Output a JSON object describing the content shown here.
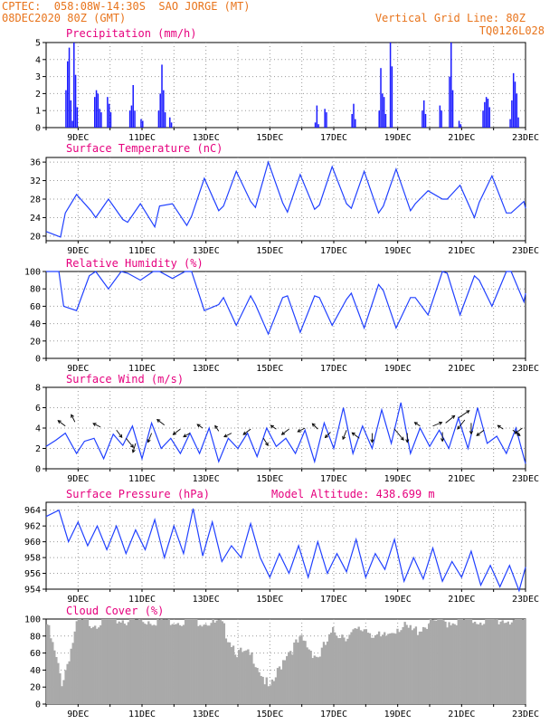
{
  "header": {
    "line1_left": "CPTEC:  058:08W-14:30S  SAO JORGE (MT)",
    "line2_left": "08DEC2020 80Z (GMT)",
    "line1_right": "Vertical Grid Line: 80Z",
    "line2_right": "TQ0126L028"
  },
  "chart_data": [
    {
      "type": "bar",
      "title": "Precipitation (mm/h)",
      "x_ticks": [
        "9DEC",
        "11DEC",
        "13DEC",
        "15DEC",
        "17DEC",
        "19DEC",
        "21DEC",
        "23DEC"
      ],
      "ylim": [
        0,
        5
      ],
      "y_ticks": [
        "0",
        "1",
        "2",
        "3",
        "4",
        "5"
      ],
      "color": "#1a1aff",
      "grid": true,
      "events": [
        {
          "day": 8.6,
          "values": [
            2.2,
            3.9,
            4.7,
            1.6,
            0.4
          ]
        },
        {
          "day": 8.85,
          "values": [
            5.0,
            3.1,
            1.2
          ]
        },
        {
          "day": 9.5,
          "values": [
            1.8,
            2.2,
            2.0,
            1.1,
            0.9
          ]
        },
        {
          "day": 9.9,
          "values": [
            1.8,
            1.4,
            0.9
          ]
        },
        {
          "day": 10.6,
          "values": [
            1.0,
            1.3,
            2.5,
            1.0
          ]
        },
        {
          "day": 10.95,
          "values": [
            0.5,
            0.4
          ]
        },
        {
          "day": 11.5,
          "values": [
            1.0,
            2.0,
            3.7,
            2.2,
            0.9
          ]
        },
        {
          "day": 11.85,
          "values": [
            0.6,
            0.3
          ]
        },
        {
          "day": 16.4,
          "values": [
            0.3,
            1.3,
            0.2
          ]
        },
        {
          "day": 16.7,
          "values": [
            1.1,
            0.9
          ]
        },
        {
          "day": 17.55,
          "values": [
            0.8,
            1.4,
            0.5
          ]
        },
        {
          "day": 18.4,
          "values": [
            1.0,
            3.5,
            2.0,
            1.8,
            0.8
          ]
        },
        {
          "day": 18.75,
          "values": [
            5.0,
            3.6
          ]
        },
        {
          "day": 19.75,
          "values": [
            1.0,
            1.6,
            0.8
          ]
        },
        {
          "day": 20.3,
          "values": [
            1.3,
            1.0
          ]
        },
        {
          "day": 20.6,
          "values": [
            3.0,
            5.0,
            2.2
          ]
        },
        {
          "day": 20.9,
          "values": [
            0.4,
            0.2
          ]
        },
        {
          "day": 21.65,
          "values": [
            1.0,
            1.5,
            1.8,
            1.7,
            1.2
          ]
        },
        {
          "day": 22.5,
          "values": [
            0.5,
            1.6,
            3.2,
            2.7,
            2.0,
            0.6
          ]
        }
      ]
    },
    {
      "type": "line",
      "title": "Surface Temperature (nC)",
      "x_ticks": [
        "9DEC",
        "11DEC",
        "13DEC",
        "15DEC",
        "17DEC",
        "19DEC",
        "21DEC",
        "23DEC"
      ],
      "ylim": [
        19,
        37
      ],
      "y_ticks": [
        "20",
        "24",
        "28",
        "32",
        "36"
      ],
      "y_tick_values": [
        20,
        24,
        28,
        32,
        36
      ],
      "color": "#2040ff",
      "x": [
        8.0,
        8.45,
        8.6,
        8.95,
        9.4,
        9.55,
        9.95,
        10.4,
        10.55,
        10.95,
        11.4,
        11.55,
        11.95,
        12.4,
        12.55,
        12.95,
        13.4,
        13.55,
        13.95,
        14.4,
        14.55,
        14.95,
        15.4,
        15.55,
        15.95,
        16.4,
        16.55,
        16.95,
        17.4,
        17.55,
        17.95,
        18.4,
        18.55,
        18.95,
        19.4,
        19.55,
        19.95,
        20.4,
        20.55,
        20.95,
        21.4,
        21.55,
        21.95,
        22.4,
        22.55,
        22.95,
        23.0
      ],
      "y": [
        21.0,
        19.8,
        25.0,
        29.0,
        25.5,
        24.0,
        28.0,
        23.6,
        23.0,
        27.0,
        22.0,
        26.5,
        27.0,
        22.3,
        24.3,
        32.5,
        25.5,
        26.5,
        34.0,
        27.5,
        26.2,
        36.0,
        27.2,
        25.2,
        33.3,
        25.8,
        26.7,
        35.0,
        27.0,
        26.0,
        34.0,
        25.0,
        26.5,
        34.5,
        25.5,
        27.0,
        29.8,
        28.0,
        28.0,
        31.0,
        24.0,
        27.3,
        33.0,
        25.0,
        25.0,
        27.5,
        26.0
      ]
    },
    {
      "type": "line",
      "title": "Relative Humidity (%)",
      "x_ticks": [
        "9DEC",
        "11DEC",
        "13DEC",
        "15DEC",
        "17DEC",
        "19DEC",
        "21DEC",
        "23DEC"
      ],
      "ylim": [
        0,
        100
      ],
      "y_ticks": [
        "0",
        "20",
        "40",
        "60",
        "80",
        "100"
      ],
      "y_tick_values": [
        0,
        20,
        40,
        60,
        80,
        100
      ],
      "color": "#2040ff",
      "x": [
        8.0,
        8.4,
        8.55,
        8.95,
        9.35,
        9.55,
        9.95,
        10.35,
        10.55,
        10.95,
        11.35,
        11.55,
        11.95,
        12.35,
        12.55,
        12.95,
        13.4,
        13.55,
        13.95,
        14.4,
        14.55,
        14.95,
        15.4,
        15.55,
        15.95,
        16.4,
        16.55,
        16.95,
        17.4,
        17.55,
        17.95,
        18.4,
        18.55,
        18.95,
        19.4,
        19.55,
        19.95,
        20.4,
        20.55,
        20.95,
        21.4,
        21.55,
        21.95,
        22.4,
        22.55,
        22.95,
        23.0
      ],
      "y": [
        100,
        100,
        60,
        55,
        95,
        100,
        80,
        100,
        98,
        90,
        100,
        100,
        92,
        100,
        100,
        55,
        62,
        70,
        38,
        72,
        62,
        28,
        70,
        72,
        30,
        72,
        70,
        38,
        68,
        75,
        35,
        85,
        78,
        35,
        70,
        70,
        50,
        100,
        98,
        50,
        95,
        90,
        60,
        100,
        100,
        65,
        75
      ]
    },
    {
      "type": "line",
      "title": "Surface Wind (m/s)",
      "x_ticks": [
        "9DEC",
        "11DEC",
        "13DEC",
        "15DEC",
        "17DEC",
        "19DEC",
        "21DEC",
        "23DEC"
      ],
      "ylim": [
        0,
        8
      ],
      "y_ticks": [
        "0",
        "2",
        "4",
        "6",
        "8"
      ],
      "y_tick_values": [
        0,
        2,
        4,
        6,
        8
      ],
      "color": "#2040ff",
      "x": [
        8.0,
        8.3,
        8.6,
        8.95,
        9.2,
        9.5,
        9.8,
        10.1,
        10.4,
        10.7,
        11.0,
        11.3,
        11.6,
        11.9,
        12.2,
        12.5,
        12.8,
        13.1,
        13.4,
        13.7,
        14.0,
        14.3,
        14.6,
        14.9,
        15.2,
        15.5,
        15.8,
        16.1,
        16.4,
        16.7,
        17.0,
        17.3,
        17.6,
        17.9,
        18.2,
        18.5,
        18.8,
        19.1,
        19.4,
        19.7,
        20.0,
        20.3,
        20.6,
        20.9,
        21.2,
        21.5,
        21.8,
        22.1,
        22.4,
        22.7,
        23.0
      ],
      "y": [
        2.2,
        2.8,
        3.5,
        1.5,
        2.7,
        3.0,
        1.0,
        3.4,
        2.3,
        4.2,
        1.0,
        4.5,
        2.0,
        3.0,
        1.5,
        3.5,
        1.5,
        4.0,
        0.7,
        3.0,
        2.0,
        3.5,
        1.2,
        4.0,
        2.2,
        3.0,
        1.5,
        3.8,
        0.7,
        4.5,
        2.0,
        6.0,
        1.5,
        4.2,
        2.0,
        5.8,
        2.5,
        6.5,
        1.5,
        4.0,
        2.2,
        3.8,
        2.0,
        5.0,
        2.0,
        6.0,
        2.5,
        3.2,
        1.5,
        4.0,
        0.5
      ],
      "annotations": "wind direction arrows"
    },
    {
      "type": "line",
      "title": "Surface Pressure (hPa)",
      "subtitle": "Model Altitude: 438.699 m",
      "x_ticks": [
        "9DEC",
        "11DEC",
        "13DEC",
        "15DEC",
        "17DEC",
        "19DEC",
        "21DEC",
        "23DEC"
      ],
      "ylim": [
        954,
        965
      ],
      "y_ticks": [
        "954",
        "956",
        "958",
        "960",
        "962",
        "964"
      ],
      "y_tick_values": [
        954,
        956,
        958,
        960,
        962,
        964
      ],
      "color": "#2040ff",
      "x": [
        8.0,
        8.4,
        8.7,
        9.0,
        9.3,
        9.6,
        9.9,
        10.2,
        10.5,
        10.8,
        11.1,
        11.4,
        11.7,
        12.0,
        12.3,
        12.6,
        12.9,
        13.2,
        13.5,
        13.8,
        14.1,
        14.4,
        14.7,
        15.0,
        15.3,
        15.6,
        15.9,
        16.2,
        16.5,
        16.8,
        17.1,
        17.4,
        17.7,
        18.0,
        18.3,
        18.6,
        18.9,
        19.2,
        19.5,
        19.8,
        20.1,
        20.4,
        20.7,
        21.0,
        21.3,
        21.6,
        21.9,
        22.2,
        22.5,
        22.8,
        23.0
      ],
      "y": [
        963.2,
        964.0,
        960.0,
        962.5,
        959.5,
        962.0,
        959.0,
        962.0,
        958.5,
        961.5,
        959.0,
        962.8,
        958.0,
        962.0,
        958.5,
        964.2,
        958.2,
        962.5,
        957.5,
        959.5,
        958.0,
        962.3,
        958.0,
        955.5,
        958.5,
        956.0,
        959.5,
        955.5,
        960.0,
        956.0,
        958.5,
        956.2,
        960.3,
        955.5,
        958.5,
        956.5,
        960.3,
        955.0,
        958.0,
        955.3,
        959.2,
        955.0,
        957.5,
        955.5,
        958.8,
        954.5,
        957.0,
        954.3,
        957.0,
        953.8,
        956.8
      ]
    },
    {
      "type": "bar",
      "title": "Cloud Cover (%)",
      "x_ticks": [
        "9DEC",
        "11DEC",
        "13DEC",
        "15DEC",
        "17DEC",
        "19DEC",
        "21DEC",
        "23DEC"
      ],
      "ylim": [
        0,
        100
      ],
      "y_ticks": [
        "0",
        "20",
        "40",
        "60",
        "80",
        "100"
      ],
      "color": "#a9a9a9",
      "x": [
        8.0,
        8.5,
        9.0,
        9.5,
        10.0,
        10.5,
        11.0,
        11.5,
        12.0,
        12.5,
        13.0,
        13.5,
        14.0,
        14.5,
        15.0,
        15.5,
        16.0,
        16.5,
        17.0,
        17.5,
        18.0,
        18.5,
        19.0,
        19.5,
        20.0,
        20.5,
        21.0,
        21.5,
        22.0,
        22.5,
        23.0
      ],
      "values": [
        98,
        25,
        97,
        96,
        99,
        99,
        98,
        99,
        99,
        100,
        98,
        92,
        60,
        55,
        15,
        60,
        75,
        55,
        85,
        80,
        90,
        75,
        92,
        85,
        96,
        97,
        99,
        99,
        99,
        99,
        98
      ]
    }
  ]
}
